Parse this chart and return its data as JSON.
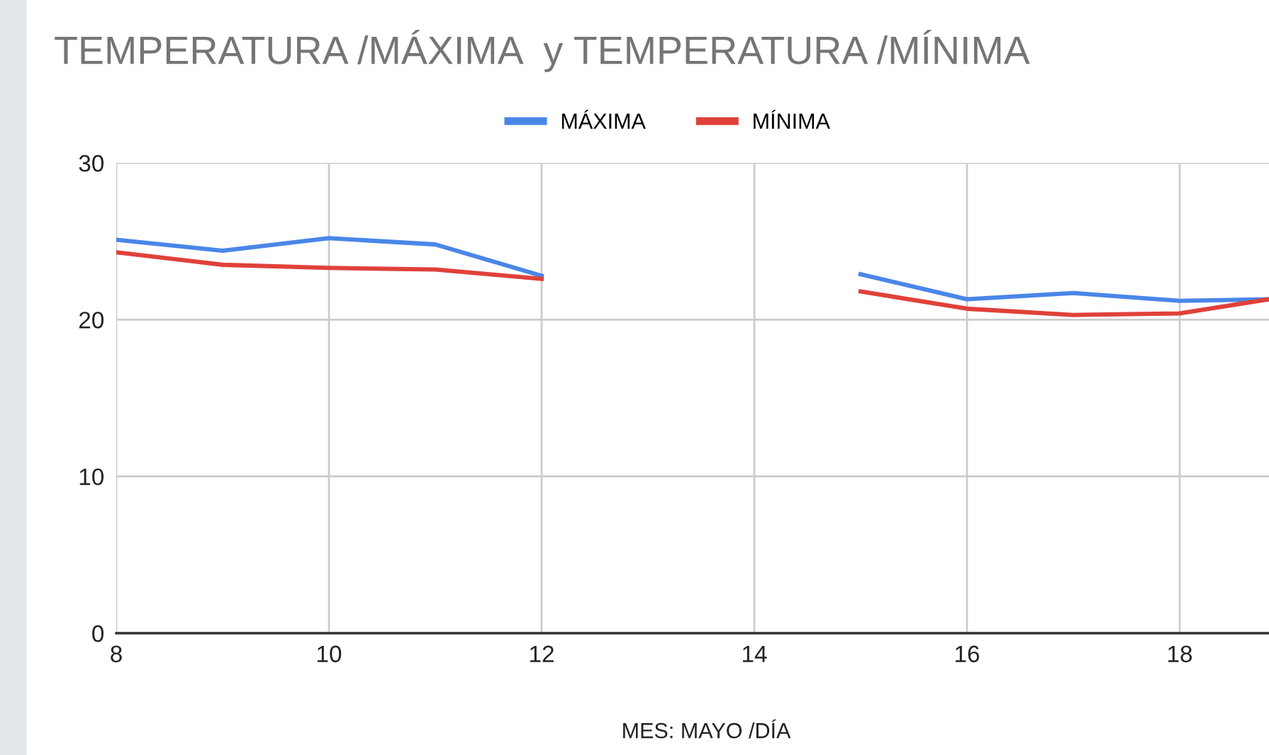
{
  "chart_data": {
    "type": "line",
    "title": "TEMPERATURA /MÁXIMA  y TEMPERATURA /MÍNIMA",
    "xlabel": "MES: MAYO /DÍA",
    "x": [
      8,
      9,
      10,
      11,
      12,
      13,
      14,
      15,
      16,
      17,
      18,
      18.84
    ],
    "series": [
      {
        "name": "MÁXIMA",
        "color": "#4a86e8",
        "values": [
          25.1,
          24.4,
          25.2,
          24.8,
          22.8,
          null,
          null,
          22.9,
          21.3,
          21.7,
          21.2,
          21.3
        ]
      },
      {
        "name": "MÍNIMA",
        "color": "#e0413a",
        "values": [
          24.3,
          23.5,
          23.3,
          23.2,
          22.6,
          null,
          null,
          21.8,
          20.7,
          20.3,
          20.4,
          21.3
        ]
      }
    ],
    "xlim": [
      8,
      18.84
    ],
    "xticks": [
      8,
      10,
      12,
      14,
      16,
      18
    ],
    "ylim": [
      0,
      30
    ],
    "yticks": [
      0,
      10,
      20,
      30
    ],
    "grid": true,
    "legend": "top",
    "marker": "none",
    "line_style": "solid"
  }
}
